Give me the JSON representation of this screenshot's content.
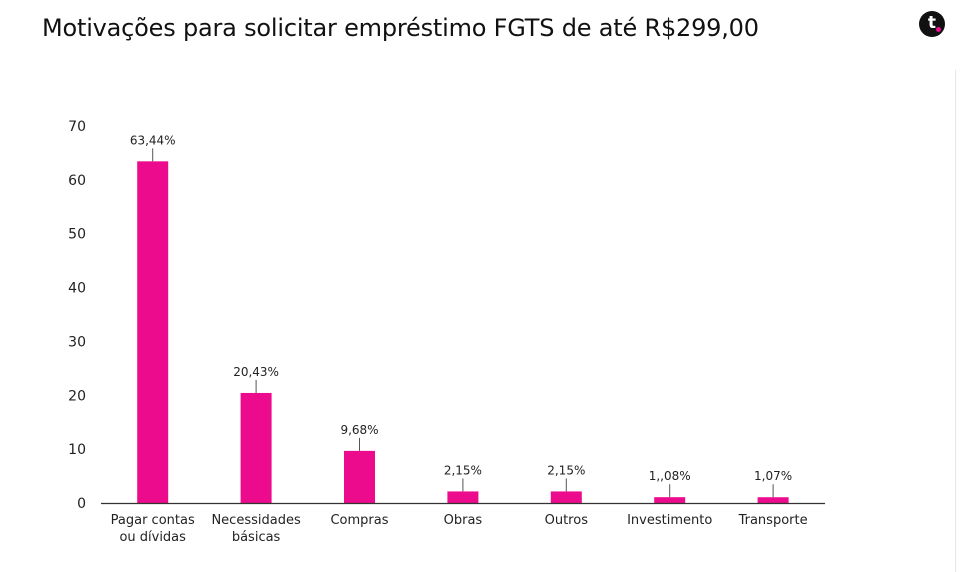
{
  "title": "Motivações para solicitar empréstimo FGTS de até R$299,00",
  "logo": {
    "letter": "t"
  },
  "colors": {
    "bar": "#ec0b8d",
    "axis": "#333333",
    "logo_dot": "#ec0b8d"
  },
  "chart_data": {
    "type": "bar",
    "categories": [
      [
        "Pagar contas",
        "ou dívidas"
      ],
      [
        "Necessidades",
        "básicas"
      ],
      [
        "Compras"
      ],
      [
        "Obras"
      ],
      [
        "Outros"
      ],
      [
        "Investimento"
      ],
      [
        "Transporte"
      ]
    ],
    "values": [
      63.44,
      20.43,
      9.68,
      2.15,
      2.15,
      1.08,
      1.07
    ],
    "value_labels": [
      "63,44%",
      "20,43%",
      "9,68%",
      "2,15%",
      "2,15%",
      "1,,08%",
      "1,07%"
    ],
    "yticks": [
      0,
      10,
      20,
      30,
      40,
      50,
      60,
      70
    ],
    "ylim": [
      0,
      70
    ],
    "grid": false,
    "legend": "none"
  }
}
